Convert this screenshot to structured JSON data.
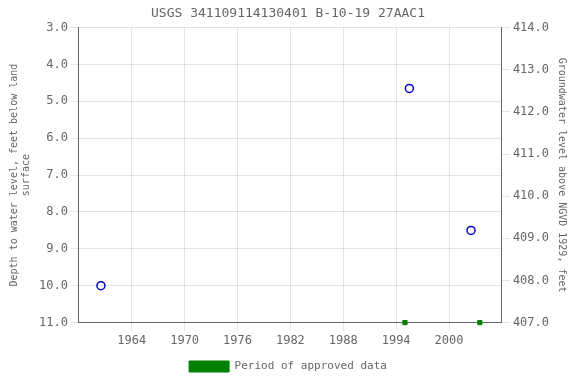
{
  "chart_data": {
    "type": "scatter",
    "title": "USGS 341109114130401 B-10-19 27AAC1",
    "ylabel": "Depth to water level, feet below land\nsurface",
    "y2label": "Groundwater level above NGVD 1929, feet",
    "xlim": [
      1958,
      2006
    ],
    "xticks": [
      1964,
      1970,
      1976,
      1982,
      1988,
      1994,
      2000
    ],
    "ylim": [
      11.0,
      3.0
    ],
    "yticks": [
      {
        "value": 3.0,
        "label": "3.0"
      },
      {
        "value": 4.0,
        "label": "4.0"
      },
      {
        "value": 5.0,
        "label": "5.0"
      },
      {
        "value": 6.0,
        "label": "6.0"
      },
      {
        "value": 7.0,
        "label": "7.0"
      },
      {
        "value": 8.0,
        "label": "8.0"
      },
      {
        "value": 9.0,
        "label": "9.0"
      },
      {
        "value": 10.0,
        "label": "10.0"
      },
      {
        "value": 11.0,
        "label": "11.0"
      }
    ],
    "y2lim": [
      407.0,
      414.0
    ],
    "y2ticks": [
      {
        "value": 407.0,
        "label": "407.0"
      },
      {
        "value": 408.0,
        "label": "408.0"
      },
      {
        "value": 409.0,
        "label": "409.0"
      },
      {
        "value": 410.0,
        "label": "410.0"
      },
      {
        "value": 411.0,
        "label": "411.0"
      },
      {
        "value": 412.0,
        "label": "412.0"
      },
      {
        "value": 413.0,
        "label": "413.0"
      },
      {
        "value": 414.0,
        "label": "414.0"
      }
    ],
    "grid": true,
    "legend": "bottom",
    "series": [
      {
        "x": [
          1960.5,
          1995.5,
          2002.5
        ],
        "values": [
          10.0,
          4.65,
          8.5
        ],
        "color": "#0000cc",
        "marker": "circle"
      },
      {
        "name": "Period of approved data",
        "x": [
          1995.0,
          2003.5
        ],
        "values": [
          11.0,
          11.0
        ],
        "color": "#008000",
        "marker": "square"
      }
    ]
  }
}
